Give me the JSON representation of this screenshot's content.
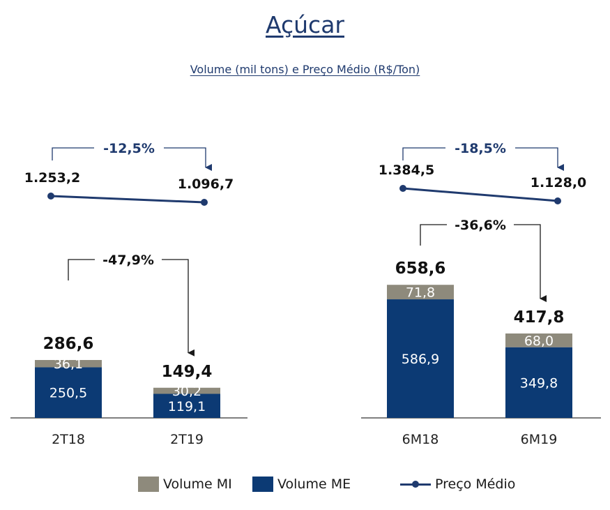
{
  "title": "Açúcar",
  "subtitle": "Volume (mil tons) e Preço Médio (R$/Ton)",
  "colors": {
    "mi": "#8e8a7c",
    "me": "#0c3a74",
    "price": "#1f3a6e",
    "pct_text": "#1f3a6e"
  },
  "chart_data": [
    {
      "type": "bar",
      "stacked": true,
      "categories": [
        "2T18",
        "2T19"
      ],
      "series": [
        {
          "name": "Volume ME",
          "values": [
            250.5,
            119.1
          ],
          "labels": [
            "250,5",
            "119,1"
          ]
        },
        {
          "name": "Volume MI",
          "values": [
            36.1,
            30.2
          ],
          "labels": [
            "36,1",
            "30,2"
          ]
        }
      ],
      "totals": [
        286.6,
        149.4
      ],
      "total_labels": [
        "286,6",
        "149,4"
      ],
      "line_series": {
        "name": "Preço Médio",
        "values": [
          1253.2,
          1096.7
        ],
        "labels": [
          "1.253,2",
          "1.096,7"
        ]
      },
      "price_change": "-12,5%",
      "volume_change": "-47,9%"
    },
    {
      "type": "bar",
      "stacked": true,
      "categories": [
        "6M18",
        "6M19"
      ],
      "series": [
        {
          "name": "Volume ME",
          "values": [
            586.9,
            349.8
          ],
          "labels": [
            "586,9",
            "349,8"
          ]
        },
        {
          "name": "Volume MI",
          "values": [
            71.8,
            68.0
          ],
          "labels": [
            "71,8",
            "68,0"
          ]
        }
      ],
      "totals": [
        658.6,
        417.8
      ],
      "total_labels": [
        "658,6",
        "417,8"
      ],
      "line_series": {
        "name": "Preço Médio",
        "values": [
          1384.5,
          1128.0
        ],
        "labels": [
          "1.384,5",
          "1.128,0"
        ]
      },
      "price_change": "-18,5%",
      "volume_change": "-36,6%"
    }
  ],
  "legend": {
    "mi": "Volume MI",
    "me": "Volume ME",
    "price": "Preço Médio"
  }
}
